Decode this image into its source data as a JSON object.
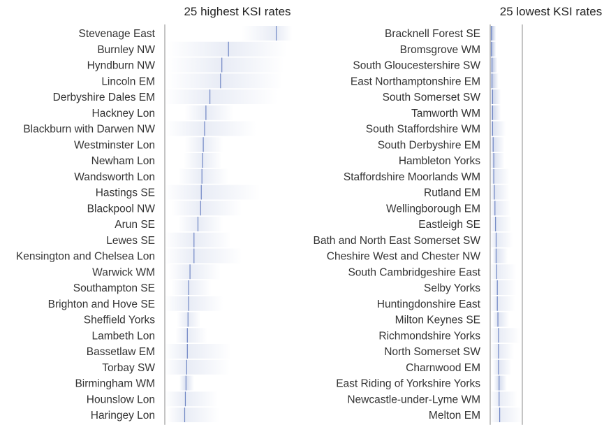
{
  "chart_data": [
    {
      "type": "bar",
      "title": "25 highest KSI rates",
      "encoding": "gradient interval with central estimate",
      "categories": [
        "Stevenage East",
        "Burnley NW",
        "Hyndburn NW",
        "Lincoln EM",
        "Derbyshire Dales EM",
        "Hackney Lon",
        "Blackburn with Darwen NW",
        "Westminster Lon",
        "Newham Lon",
        "Wandsworth Lon",
        "Hastings SE",
        "Blackpool NW",
        "Arun SE",
        "Lewes SE",
        "Kensington and Chelsea Lon",
        "Warwick WM",
        "Southampton SE",
        "Brighton and Hove SE",
        "Sheffield Yorks",
        "Lambeth Lon",
        "Bassetlaw EM",
        "Torbay SW",
        "Birmingham WM",
        "Hounslow Lon",
        "Haringey Lon"
      ],
      "estimate": [
        0.84,
        0.48,
        0.43,
        0.42,
        0.34,
        0.31,
        0.3,
        0.29,
        0.285,
        0.28,
        0.275,
        0.27,
        0.25,
        0.22,
        0.22,
        0.19,
        0.18,
        0.18,
        0.175,
        0.17,
        0.17,
        0.165,
        0.16,
        0.155,
        0.15
      ],
      "low": [
        0.58,
        0.02,
        0.02,
        0.02,
        0.0,
        0.15,
        0.01,
        0.15,
        0.14,
        0.1,
        0.0,
        0.05,
        0.1,
        0.0,
        0.0,
        0.03,
        0.05,
        0.0,
        0.09,
        0.08,
        0.0,
        0.0,
        0.11,
        0.0,
        0.02
      ],
      "high": [
        0.96,
        0.92,
        0.9,
        0.89,
        0.85,
        0.52,
        0.69,
        0.44,
        0.43,
        0.48,
        0.72,
        0.58,
        0.44,
        0.5,
        0.58,
        0.42,
        0.35,
        0.44,
        0.27,
        0.32,
        0.5,
        0.49,
        0.22,
        0.4,
        0.41
      ]
    },
    {
      "type": "bar",
      "title": "25 lowest KSI rates",
      "encoding": "gradient interval with central estimate",
      "categories": [
        "Bracknell Forest SE",
        "Bromsgrove WM",
        "South Gloucestershire SW",
        "East Northamptonshire EM",
        "South Somerset SW",
        "Tamworth WM",
        "South Staffordshire WM",
        "South Derbyshire EM",
        "Hambleton Yorks",
        "Staffordshire Moorlands WM",
        "Rutland EM",
        "Wellingborough EM",
        "Eastleigh SE",
        "Bath and North East Somerset SW",
        "Cheshire West and Chester NW",
        "South Cambridgeshire East",
        "Selby Yorks",
        "Huntingdonshire East",
        "Milton Keynes SE",
        "Richmondshire Yorks",
        "North Somerset SW",
        "Charnwood EM",
        "East Riding of Yorkshire Yorks",
        "Newcastle-under-Lyme WM",
        "Melton EM"
      ],
      "estimate": [
        0.01,
        0.01,
        0.015,
        0.015,
        0.02,
        0.02,
        0.02,
        0.025,
        0.03,
        0.03,
        0.035,
        0.04,
        0.045,
        0.05,
        0.05,
        0.055,
        0.06,
        0.06,
        0.065,
        0.07,
        0.07,
        0.07,
        0.075,
        0.075,
        0.08
      ],
      "low": [
        0.0,
        0.0,
        0.0,
        0.0,
        0.0,
        0.0,
        0.0,
        0.0,
        0.0,
        0.0,
        0.0,
        0.0,
        0.0,
        0.0,
        0.02,
        0.0,
        0.0,
        0.0,
        0.02,
        0.0,
        0.0,
        0.02,
        0.03,
        0.0,
        0.0
      ],
      "high": [
        0.05,
        0.05,
        0.06,
        0.07,
        0.09,
        0.09,
        0.13,
        0.12,
        0.12,
        0.16,
        0.16,
        0.17,
        0.18,
        0.19,
        0.15,
        0.22,
        0.22,
        0.21,
        0.16,
        0.25,
        0.2,
        0.18,
        0.14,
        0.23,
        0.27
      ]
    }
  ],
  "colors": {
    "band": "#3f5fae",
    "estimate_line": "#6f86c4",
    "axis": "#888888"
  }
}
